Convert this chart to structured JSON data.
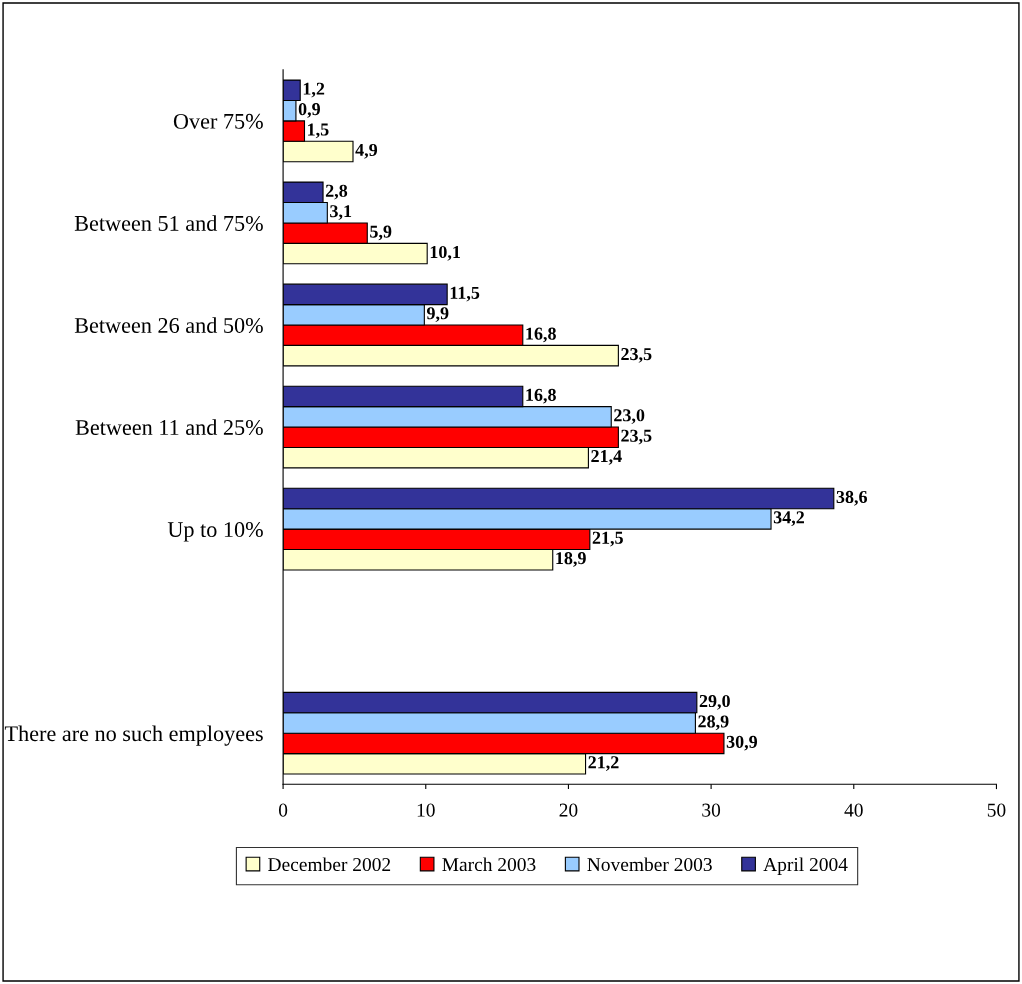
{
  "chart_data": {
    "type": "bar",
    "orientation": "horizontal",
    "categories": [
      "Over 75%",
      "Between 51 and 75%",
      "Between 26 and 50%",
      "Between 11 and 25%",
      "Up to 10%",
      null,
      "There are no such employees"
    ],
    "series": [
      {
        "name": "December 2002",
        "color": "#ffffcc",
        "values": [
          4.9,
          10.1,
          23.5,
          21.4,
          18.9,
          null,
          21.2
        ],
        "value_labels": [
          "4,9",
          "10,1",
          "23,5",
          "21,4",
          "18,9",
          null,
          "21,2"
        ]
      },
      {
        "name": "March 2003",
        "color": "#ff0000",
        "values": [
          1.5,
          5.9,
          16.8,
          23.5,
          21.5,
          null,
          30.9
        ],
        "value_labels": [
          "1,5",
          "5,9",
          "16,8",
          "23,5",
          "21,5",
          null,
          "30,9"
        ]
      },
      {
        "name": "November 2003",
        "color": "#99ccff",
        "values": [
          0.9,
          3.1,
          9.9,
          23.0,
          34.2,
          null,
          28.9
        ],
        "value_labels": [
          "0,9",
          "3,1",
          "9,9",
          "23,0",
          "34,2",
          null,
          "28,9"
        ]
      },
      {
        "name": "April 2004",
        "color": "#333399",
        "values": [
          1.2,
          2.8,
          11.5,
          16.8,
          38.6,
          null,
          29.0
        ],
        "value_labels": [
          "1,2",
          "2,8",
          "11,5",
          "16,8",
          "38,6",
          null,
          "29,0"
        ]
      }
    ],
    "xlim": [
      0,
      50
    ],
    "xticks": [
      0,
      10,
      20,
      30,
      40,
      50
    ],
    "grid": false,
    "legend": "bottom"
  }
}
